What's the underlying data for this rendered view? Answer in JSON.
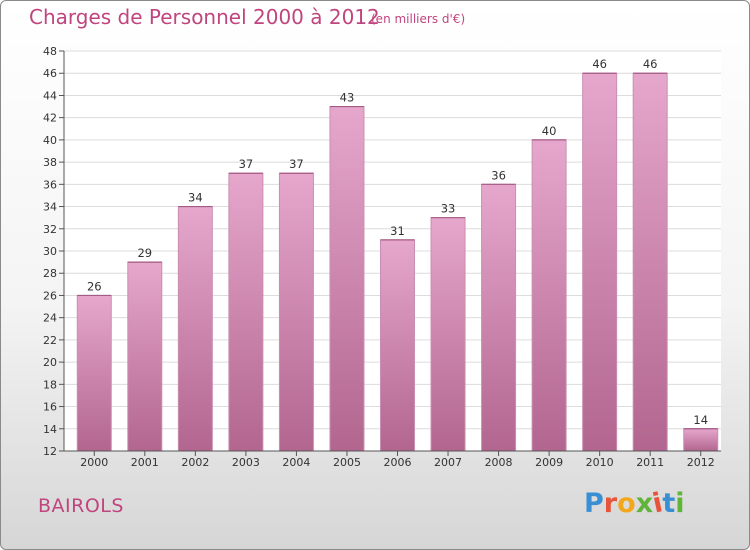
{
  "header": {
    "title": "Charges de Personnel 2000 à 2012",
    "unit_note": "(en milliers d'€)"
  },
  "footer": {
    "commune": "BAIROLS",
    "logo_text": "Proxiti"
  },
  "colors": {
    "bar_top": "#e6a7cd",
    "bar_bottom": "#b2668f",
    "text_accent": "#c0457e"
  },
  "chart_data": {
    "type": "bar",
    "title": "Charges de Personnel 2000 à 2012",
    "subtitle": "(en milliers d'€)",
    "categories": [
      "2000",
      "2001",
      "2002",
      "2003",
      "2004",
      "2005",
      "2006",
      "2007",
      "2008",
      "2009",
      "2010",
      "2011",
      "2012"
    ],
    "values": [
      26,
      29,
      34,
      37,
      37,
      43,
      31,
      33,
      36,
      40,
      46,
      46,
      14
    ],
    "ylim": [
      12,
      48
    ],
    "yticks": [
      12,
      14,
      16,
      18,
      20,
      22,
      24,
      26,
      28,
      30,
      32,
      34,
      36,
      38,
      40,
      42,
      44,
      46,
      48
    ],
    "grid": true,
    "legend": "none"
  }
}
